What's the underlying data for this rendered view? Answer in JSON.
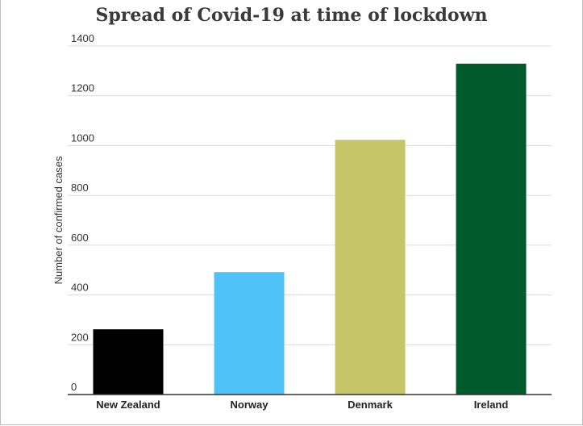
{
  "chart_data": {
    "type": "bar",
    "title": "Spread of Covid-19 at time of lockdown",
    "xlabel": "",
    "ylabel": "Number of confirmed cases",
    "categories": [
      "New Zealand",
      "Norway",
      "Denmark",
      "Ireland"
    ],
    "values": [
      262,
      492,
      1023,
      1329
    ],
    "bar_colors": [
      "#000000",
      "#4fc3f7",
      "#c5c567",
      "#005a2b"
    ],
    "ylim": [
      0,
      1400
    ],
    "yticks": [
      "0",
      "200",
      "400",
      "600",
      "800",
      "1000",
      "1200",
      "1400"
    ],
    "grid": true,
    "legend": "none"
  }
}
